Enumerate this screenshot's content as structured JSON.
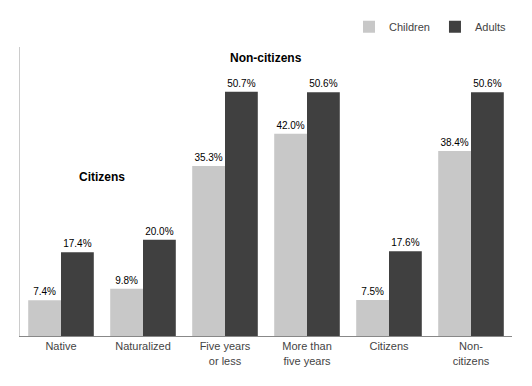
{
  "chart_data": {
    "type": "bar",
    "categories": [
      "Native",
      "Naturalized",
      "Five years\nor less",
      "More than\nfive years",
      "Citizens",
      "Non-\ncitizens"
    ],
    "series": [
      {
        "name": "Children",
        "color": "#c8c8c8",
        "values": [
          7.4,
          9.8,
          35.3,
          42.0,
          7.5,
          38.4
        ],
        "value_labels": [
          "7.4%",
          "9.8%",
          "35.3%",
          "42.0%",
          "7.5%",
          "38.4%"
        ]
      },
      {
        "name": "Adults",
        "color": "#404040",
        "values": [
          17.4,
          20.0,
          50.7,
          50.6,
          17.6,
          50.6
        ],
        "value_labels": [
          "17.4%",
          "20.0%",
          "50.7%",
          "50.6%",
          "17.6%",
          "50.6%"
        ]
      }
    ],
    "annotations": [
      {
        "text": "Citizens"
      },
      {
        "text": "Non-citizens"
      }
    ],
    "ylim": [
      0,
      60
    ],
    "grid": false,
    "legend": "upper right",
    "data_labels": true,
    "tick_labels": "x"
  }
}
